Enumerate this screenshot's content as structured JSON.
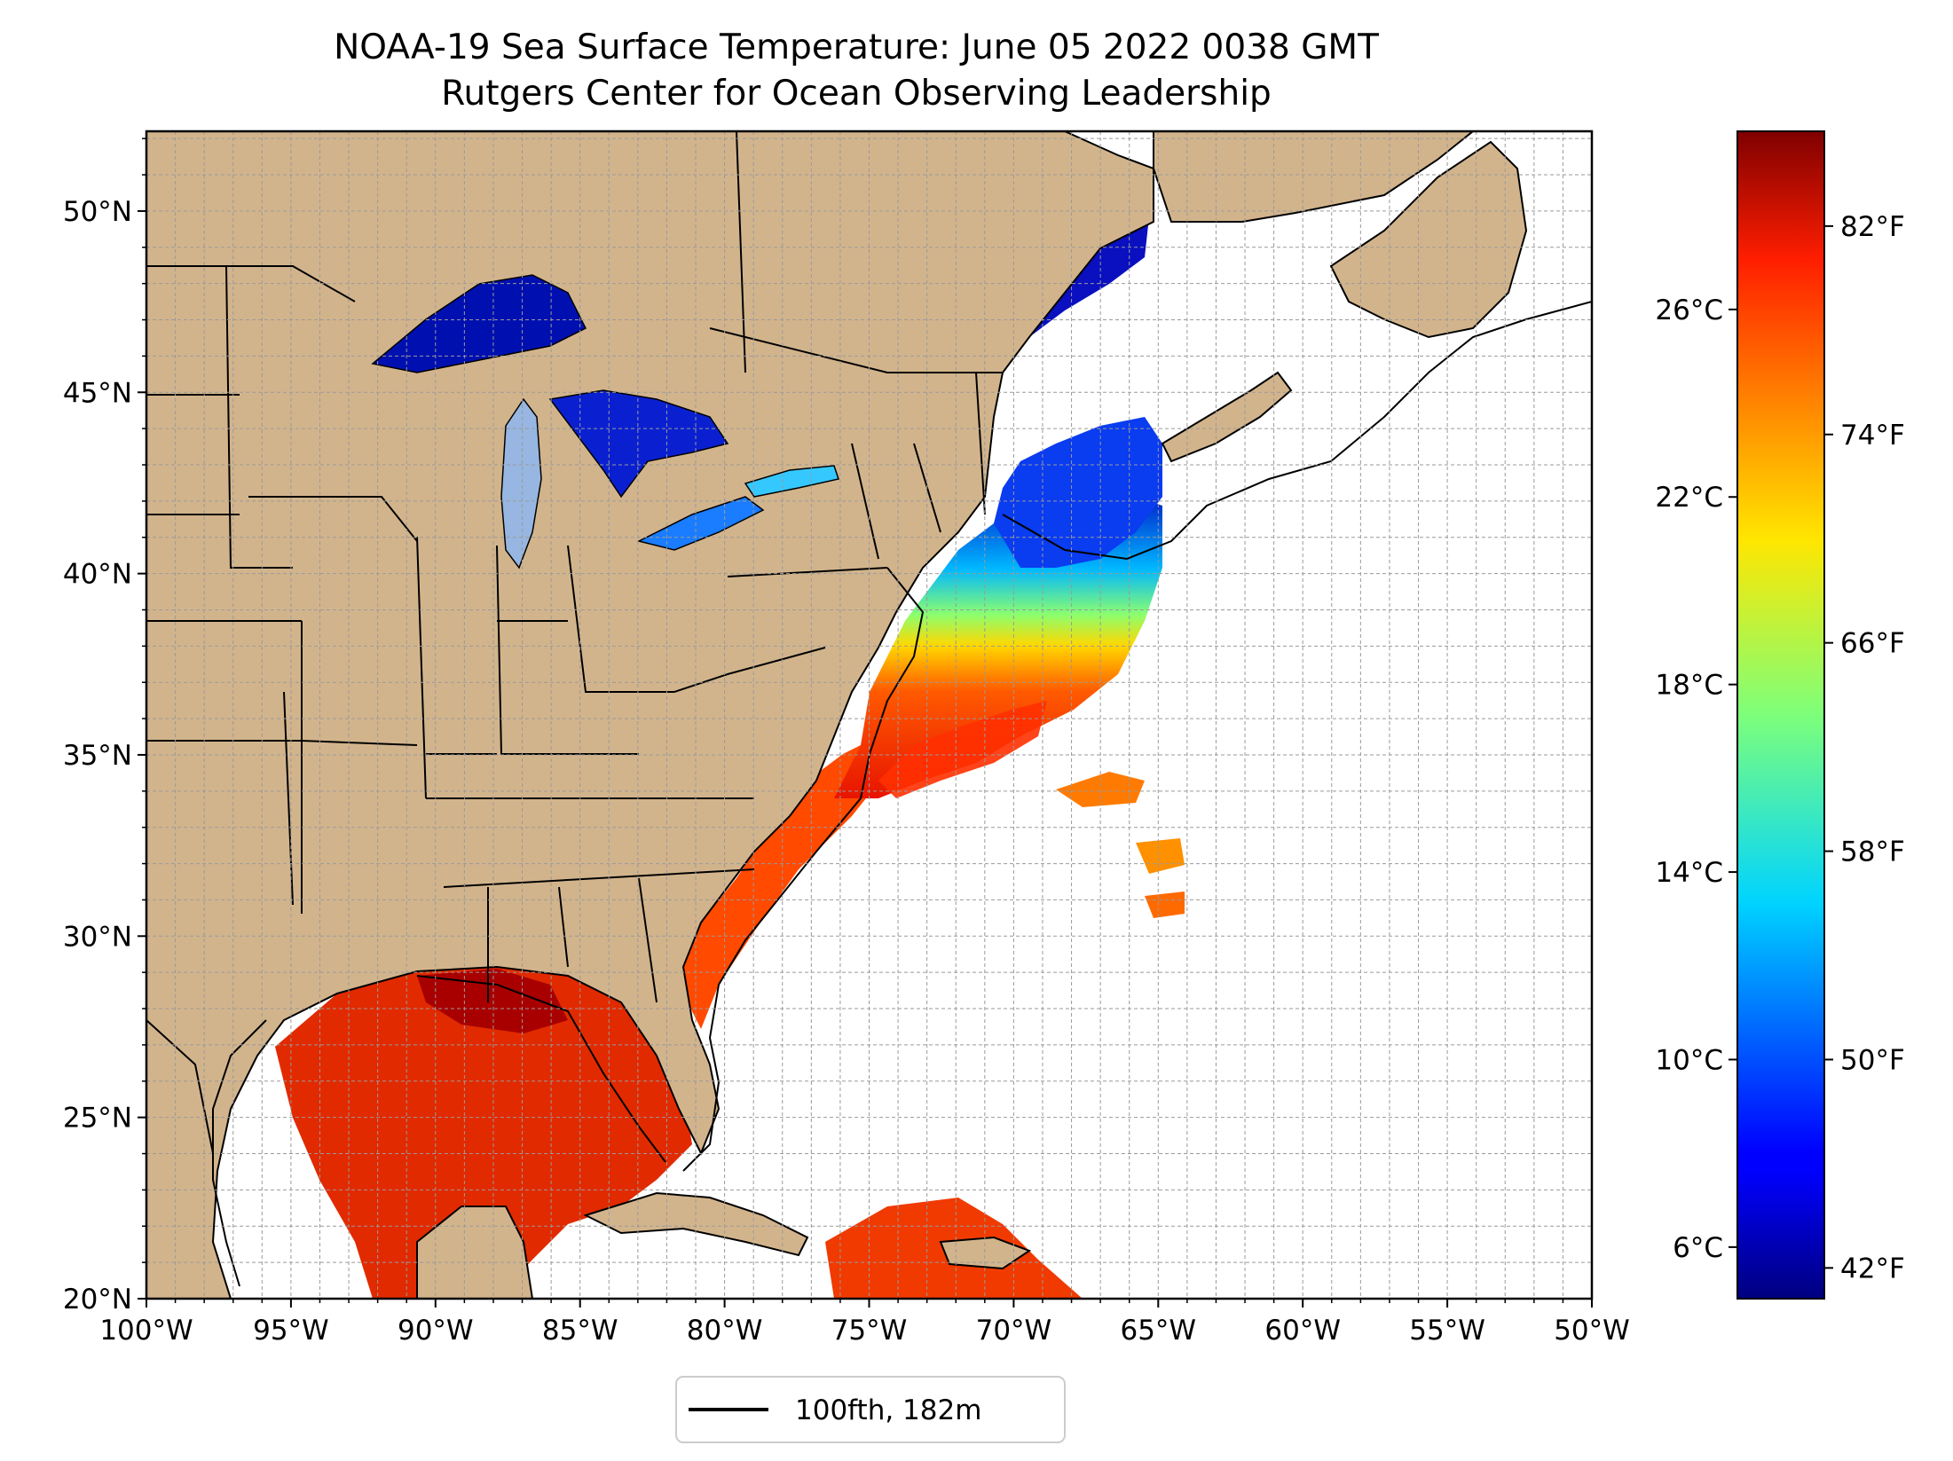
{
  "figure": {
    "title_line1": "NOAA-19 Sea Surface Temperature: June 05 2022 0038 GMT",
    "title_line2": "Rutgers Center for Ocean Observing Leadership"
  },
  "map": {
    "lon_range": [
      -100,
      -50
    ],
    "lat_range": [
      20,
      52.2
    ],
    "x_ticks": [
      "100°W",
      "95°W",
      "90°W",
      "85°W",
      "80°W",
      "75°W",
      "70°W",
      "65°W",
      "60°W",
      "55°W",
      "50°W"
    ],
    "x_tick_values": [
      -100,
      -95,
      -90,
      -85,
      -80,
      -75,
      -70,
      -65,
      -60,
      -55,
      -50
    ],
    "y_ticks": [
      "20°N",
      "25°N",
      "30°N",
      "35°N",
      "40°N",
      "45°N",
      "50°N"
    ],
    "y_tick_values": [
      20,
      25,
      30,
      35,
      40,
      45,
      50
    ],
    "grid": true,
    "grid_step_deg": 1,
    "land_color": "#d2b48c",
    "lake_color": "#97b6e1",
    "no_data_color": "#ffffff"
  },
  "legend": {
    "placement": "bottom-center",
    "entry": "100fth, 182m",
    "line_color": "#000000"
  },
  "colorbar": {
    "colormap": "jet",
    "range_celsius": [
      4.9,
      29.8
    ],
    "celsius_ticks": [
      "6°C",
      "10°C",
      "14°C",
      "18°C",
      "22°C",
      "26°C"
    ],
    "celsius_values": [
      6,
      10,
      14,
      18,
      22,
      26
    ],
    "fahrenheit_ticks": [
      "42°F",
      "50°F",
      "58°F",
      "66°F",
      "74°F",
      "82°F"
    ],
    "fahrenheit_values": [
      42,
      50,
      58,
      66,
      74,
      82
    ]
  }
}
